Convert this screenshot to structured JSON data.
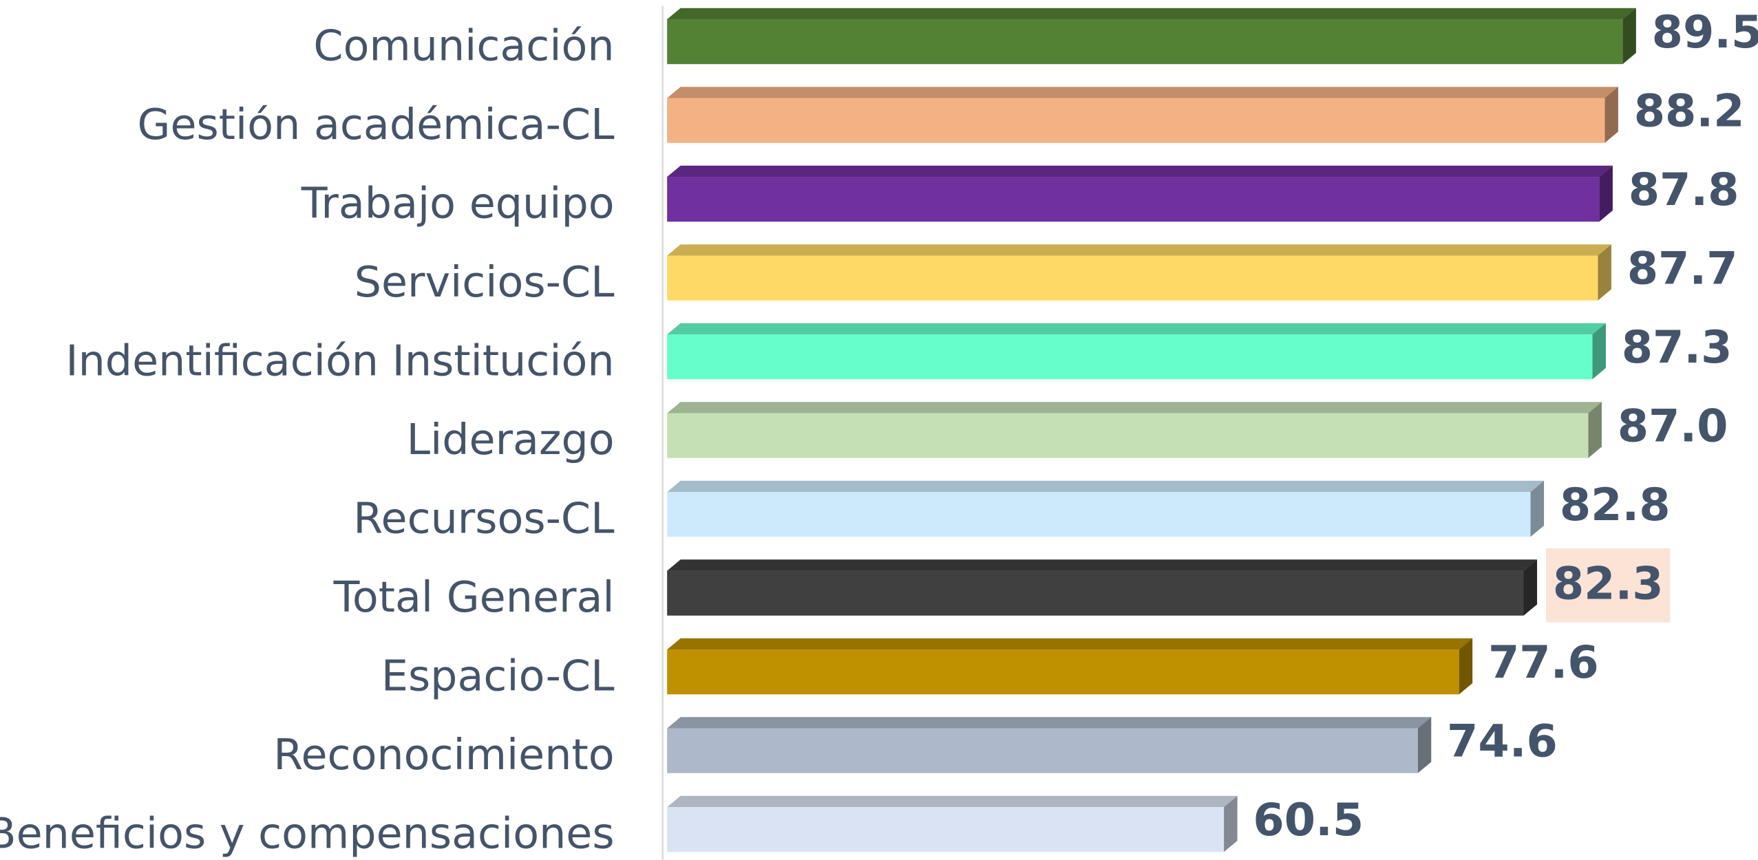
{
  "chart_data": {
    "type": "bar",
    "orientation": "horizontal",
    "categories": [
      "Comunicación",
      "Gestión académica-CL",
      "Trabajo equipo",
      "Servicios-CL",
      "Indentificación Institución",
      "Liderazgo",
      "Recursos-CL",
      "Total General",
      "Espacio-CL",
      "Reconocimiento",
      "Beneficios y compensaciones"
    ],
    "values": [
      89.5,
      88.2,
      87.8,
      87.7,
      87.3,
      87.0,
      82.8,
      82.3,
      77.6,
      74.6,
      60.5
    ],
    "value_labels": [
      "89.5",
      "88.2",
      "87.8",
      "87.7",
      "87.3",
      "87.0",
      "82.8",
      "82.3",
      "77.6",
      "74.6",
      "60.5"
    ],
    "colors": [
      "#548235",
      "#f4b183",
      "#7030a0",
      "#ffd966",
      "#66ffcc",
      "#c5e0b4",
      "#cdeafc",
      "#404040",
      "#bf9000",
      "#adb9ca",
      "#dae3f3"
    ],
    "xlim": [
      20,
      100
    ],
    "highlighted_category": "Total General",
    "highlight_color": "#fbe3d6"
  }
}
